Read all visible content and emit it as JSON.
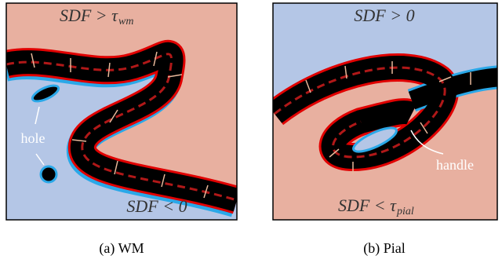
{
  "panels": [
    {
      "top_label": {
        "main": "SDF > τ",
        "sub": "wm"
      },
      "bottom_label": {
        "main": "SDF < 0"
      },
      "annotation": "hole",
      "caption": "(a) WM"
    },
    {
      "top_label": {
        "main": "SDF > 0"
      },
      "bottom_label": {
        "main": "SDF < τ",
        "sub": "pial"
      },
      "annotation": "handle",
      "caption": "(b) Pial"
    }
  ]
}
